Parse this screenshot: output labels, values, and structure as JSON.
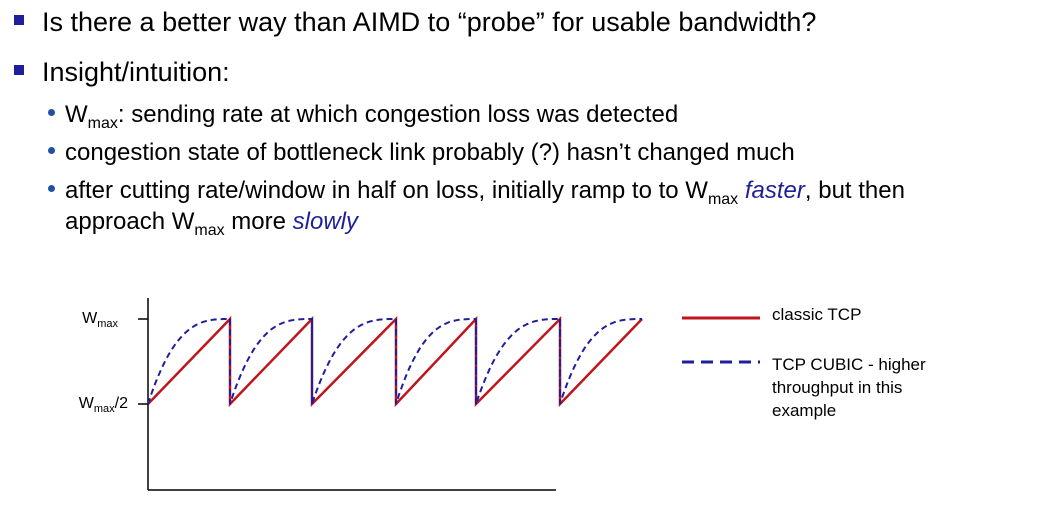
{
  "bullets": {
    "b1": "Is there a better way than AIMD to “probe” for usable bandwidth?",
    "b2": "Insight/intuition:",
    "s1": {
      "w": "W",
      "sub": "max",
      "rest": ": sending rate at which congestion loss was detected"
    },
    "s2": "congestion state of bottleneck link probably (?) hasn’t changed much",
    "s3": {
      "part1": "after cutting rate/window in half on loss, initially ramp to to W",
      "sub1": "max",
      "faster": "faster",
      "part2": ", but then",
      "line2a": "approach W",
      "sub2": "max",
      "line2b": " more ",
      "slowly": "slowly"
    }
  },
  "diagram": {
    "ylabel_top": {
      "w": "W",
      "sub": "max"
    },
    "ylabel_mid": {
      "w": "W",
      "sub": "max",
      "rest": "/2"
    },
    "legend": {
      "classic": "classic TCP",
      "cubic_line1": "TCP CUBIC - higher",
      "cubic_line2": "throughput in this",
      "cubic_line3": "example"
    },
    "colors": {
      "classic": "#c0161b",
      "cubic": "#1f1f9a"
    }
  }
}
